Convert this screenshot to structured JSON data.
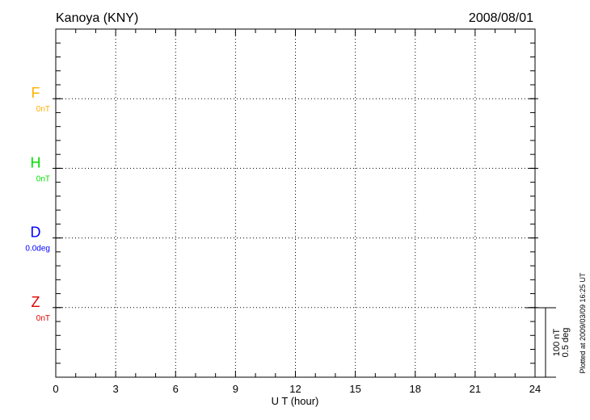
{
  "chart_data": {
    "type": "line",
    "title": "Kanoya (KNY)",
    "date": "2008/08/01",
    "xlabel": "U T (hour)",
    "xlim": [
      0,
      24
    ],
    "xticks": [
      "0",
      "3",
      "6",
      "9",
      "12",
      "15",
      "18",
      "21",
      "24"
    ],
    "grid": true,
    "series": [
      {
        "name": "F",
        "baseline": "0nT",
        "color": "#ffb000",
        "values": []
      },
      {
        "name": "H",
        "baseline": "0nT",
        "color": "#00e000",
        "values": []
      },
      {
        "name": "D",
        "baseline": "0.0deg",
        "color": "#0000ff",
        "values": []
      },
      {
        "name": "Z",
        "baseline": "0nT",
        "color": "#e00000",
        "values": []
      }
    ],
    "scale": {
      "nt": "100 nT",
      "deg": "0.5 deg"
    },
    "footer": "Plotted at 2009/03/09 16:25 UT"
  }
}
